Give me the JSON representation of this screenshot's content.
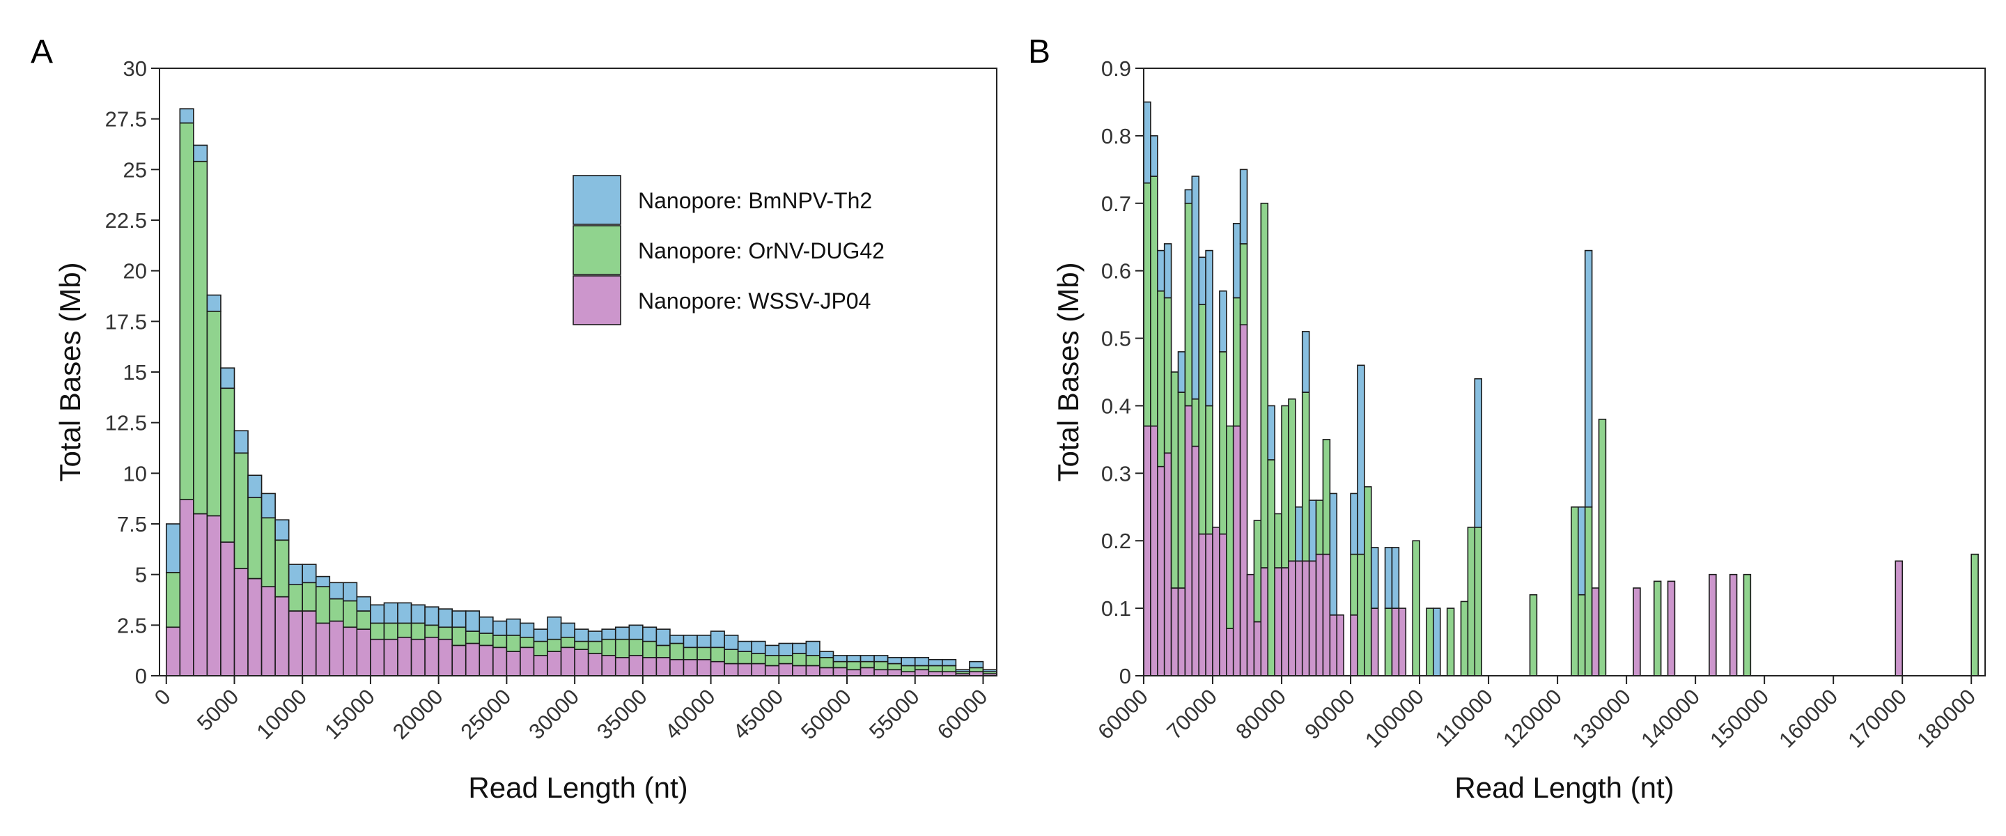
{
  "colors": {
    "BmNPV": "#88bfe0",
    "OrNV": "#90d38e",
    "WSSV": "#cc96cc"
  },
  "legend": {
    "items": [
      {
        "key": "BmNPV",
        "label": "Nanopore: BmNPV-Th2"
      },
      {
        "key": "OrNV",
        "label": "Nanopore: OrNV-DUG42"
      },
      {
        "key": "WSSV",
        "label": "Nanopore: WSSV-JP04"
      }
    ]
  },
  "chart_data": [
    {
      "panel": "A",
      "type": "bar",
      "stacked": true,
      "xlabel": "Read Length (nt)",
      "ylabel": "Total Bases (Mb)",
      "xlim": [
        -500,
        61000
      ],
      "ylim": [
        0,
        30
      ],
      "xticks": [
        0,
        5000,
        10000,
        15000,
        20000,
        25000,
        30000,
        35000,
        40000,
        45000,
        50000,
        55000,
        60000
      ],
      "yticks": [
        0,
        2.5,
        5,
        7.5,
        10,
        12.5,
        15,
        17.5,
        20,
        22.5,
        25,
        27.5,
        30
      ],
      "bin_width": 1000,
      "x": [
        0,
        1000,
        2000,
        3000,
        4000,
        5000,
        6000,
        7000,
        8000,
        9000,
        10000,
        11000,
        12000,
        13000,
        14000,
        15000,
        16000,
        17000,
        18000,
        19000,
        20000,
        21000,
        22000,
        23000,
        24000,
        25000,
        26000,
        27000,
        28000,
        29000,
        30000,
        31000,
        32000,
        33000,
        34000,
        35000,
        36000,
        37000,
        38000,
        39000,
        40000,
        41000,
        42000,
        43000,
        44000,
        45000,
        46000,
        47000,
        48000,
        49000,
        50000,
        51000,
        52000,
        53000,
        54000,
        55000,
        56000,
        57000,
        58000,
        59000,
        60000
      ],
      "legend_position": "top-right",
      "series": [
        {
          "key": "WSSV",
          "name": "Nanopore: WSSV-JP04",
          "values": [
            2.4,
            8.7,
            8.0,
            7.9,
            6.6,
            5.3,
            4.8,
            4.4,
            3.9,
            3.2,
            3.2,
            2.6,
            2.7,
            2.4,
            2.3,
            1.8,
            1.8,
            1.9,
            1.8,
            1.9,
            1.8,
            1.5,
            1.6,
            1.5,
            1.4,
            1.2,
            1.4,
            1.0,
            1.2,
            1.4,
            1.3,
            1.1,
            1.0,
            0.9,
            1.0,
            0.9,
            0.9,
            0.8,
            0.8,
            0.8,
            0.7,
            0.6,
            0.6,
            0.6,
            0.5,
            0.6,
            0.5,
            0.5,
            0.4,
            0.4,
            0.3,
            0.4,
            0.3,
            0.3,
            0.2,
            0.3,
            0.2,
            0.2,
            0.1,
            0.2,
            0.1
          ]
        },
        {
          "key": "OrNV",
          "name": "Nanopore: OrNV-DUG42",
          "values": [
            2.7,
            18.6,
            17.4,
            10.1,
            7.6,
            5.7,
            4.0,
            3.4,
            2.8,
            1.3,
            1.4,
            1.8,
            1.1,
            1.3,
            0.9,
            0.8,
            0.8,
            0.7,
            0.8,
            0.6,
            0.6,
            0.9,
            0.6,
            0.6,
            0.6,
            0.8,
            0.5,
            0.7,
            0.6,
            0.5,
            0.4,
            0.6,
            0.8,
            0.9,
            0.8,
            0.8,
            0.6,
            0.8,
            0.6,
            0.6,
            0.7,
            0.7,
            0.6,
            0.5,
            0.5,
            0.4,
            0.6,
            0.5,
            0.5,
            0.3,
            0.4,
            0.3,
            0.4,
            0.3,
            0.3,
            0.2,
            0.3,
            0.3,
            0.1,
            0.2,
            0.1
          ]
        },
        {
          "key": "BmNPV",
          "name": "Nanopore: BmNPV-Th2",
          "values": [
            2.4,
            0.7,
            0.8,
            0.8,
            1.0,
            1.1,
            1.1,
            1.2,
            1.0,
            1.0,
            0.9,
            0.5,
            0.8,
            0.9,
            0.7,
            0.9,
            1.0,
            1.0,
            0.9,
            0.9,
            0.9,
            0.8,
            1.0,
            0.8,
            0.7,
            0.8,
            0.7,
            0.6,
            1.1,
            0.7,
            0.6,
            0.5,
            0.5,
            0.6,
            0.7,
            0.7,
            0.8,
            0.4,
            0.6,
            0.6,
            0.8,
            0.7,
            0.5,
            0.6,
            0.5,
            0.6,
            0.5,
            0.7,
            0.3,
            0.3,
            0.3,
            0.3,
            0.3,
            0.3,
            0.4,
            0.4,
            0.3,
            0.3,
            0.1,
            0.3,
            0.1
          ]
        }
      ]
    },
    {
      "panel": "B",
      "type": "bar",
      "stacked": true,
      "xlabel": "Read Length (nt)",
      "ylabel": "Total Bases (Mb)",
      "xlim": [
        60000,
        182000
      ],
      "ylim": [
        0,
        0.9
      ],
      "xticks": [
        60000,
        70000,
        80000,
        90000,
        100000,
        110000,
        120000,
        130000,
        140000,
        150000,
        160000,
        170000,
        180000
      ],
      "yticks": [
        0,
        0.1,
        0.2,
        0.3,
        0.4,
        0.5,
        0.6,
        0.7,
        0.8,
        0.9
      ],
      "bin_width": 1000,
      "bars": [
        {
          "x": 60000,
          "WSSV": 0.37,
          "OrNV": 0.36,
          "BmNPV": 0.12
        },
        {
          "x": 61000,
          "WSSV": 0.37,
          "OrNV": 0.37,
          "BmNPV": 0.06
        },
        {
          "x": 62000,
          "WSSV": 0.31,
          "OrNV": 0.26,
          "BmNPV": 0.06
        },
        {
          "x": 63000,
          "WSSV": 0.33,
          "OrNV": 0.23,
          "BmNPV": 0.08
        },
        {
          "x": 64000,
          "WSSV": 0.13,
          "OrNV": 0.32,
          "BmNPV": 0.0
        },
        {
          "x": 65000,
          "WSSV": 0.13,
          "OrNV": 0.29,
          "BmNPV": 0.06
        },
        {
          "x": 66000,
          "WSSV": 0.4,
          "OrNV": 0.3,
          "BmNPV": 0.02
        },
        {
          "x": 67000,
          "WSSV": 0.34,
          "OrNV": 0.07,
          "BmNPV": 0.33
        },
        {
          "x": 68000,
          "WSSV": 0.21,
          "OrNV": 0.34,
          "BmNPV": 0.07
        },
        {
          "x": 69000,
          "WSSV": 0.21,
          "OrNV": 0.19,
          "BmNPV": 0.23
        },
        {
          "x": 70000,
          "WSSV": 0.22,
          "OrNV": 0.0,
          "BmNPV": 0.0
        },
        {
          "x": 71000,
          "WSSV": 0.21,
          "OrNV": 0.27,
          "BmNPV": 0.09
        },
        {
          "x": 72000,
          "WSSV": 0.07,
          "OrNV": 0.3,
          "BmNPV": 0.0
        },
        {
          "x": 73000,
          "WSSV": 0.37,
          "OrNV": 0.19,
          "BmNPV": 0.11
        },
        {
          "x": 74000,
          "WSSV": 0.52,
          "OrNV": 0.12,
          "BmNPV": 0.11
        },
        {
          "x": 75000,
          "WSSV": 0.15,
          "OrNV": 0.0,
          "BmNPV": 0.0
        },
        {
          "x": 76000,
          "WSSV": 0.08,
          "OrNV": 0.15,
          "BmNPV": 0.0
        },
        {
          "x": 77000,
          "WSSV": 0.16,
          "OrNV": 0.54,
          "BmNPV": 0.0
        },
        {
          "x": 78000,
          "WSSV": 0.0,
          "OrNV": 0.32,
          "BmNPV": 0.08
        },
        {
          "x": 79000,
          "WSSV": 0.16,
          "OrNV": 0.08,
          "BmNPV": 0.0
        },
        {
          "x": 80000,
          "WSSV": 0.16,
          "OrNV": 0.24,
          "BmNPV": 0.0
        },
        {
          "x": 81000,
          "WSSV": 0.17,
          "OrNV": 0.24,
          "BmNPV": 0.0
        },
        {
          "x": 82000,
          "WSSV": 0.17,
          "OrNV": 0.0,
          "BmNPV": 0.08
        },
        {
          "x": 83000,
          "WSSV": 0.17,
          "OrNV": 0.25,
          "BmNPV": 0.09
        },
        {
          "x": 84000,
          "WSSV": 0.17,
          "OrNV": 0.0,
          "BmNPV": 0.09
        },
        {
          "x": 85000,
          "WSSV": 0.18,
          "OrNV": 0.08,
          "BmNPV": 0.0
        },
        {
          "x": 86000,
          "WSSV": 0.18,
          "OrNV": 0.17,
          "BmNPV": 0.0
        },
        {
          "x": 87000,
          "WSSV": 0.09,
          "OrNV": 0.0,
          "BmNPV": 0.18
        },
        {
          "x": 88000,
          "WSSV": 0.09,
          "OrNV": 0.0,
          "BmNPV": 0.0
        },
        {
          "x": 90000,
          "WSSV": 0.09,
          "OrNV": 0.09,
          "BmNPV": 0.09
        },
        {
          "x": 91000,
          "WSSV": 0.0,
          "OrNV": 0.18,
          "BmNPV": 0.28
        },
        {
          "x": 92000,
          "WSSV": 0.0,
          "OrNV": 0.28,
          "BmNPV": 0.0
        },
        {
          "x": 93000,
          "WSSV": 0.1,
          "OrNV": 0.0,
          "BmNPV": 0.09
        },
        {
          "x": 95000,
          "WSSV": 0.0,
          "OrNV": 0.1,
          "BmNPV": 0.09
        },
        {
          "x": 96000,
          "WSSV": 0.1,
          "OrNV": 0.0,
          "BmNPV": 0.09
        },
        {
          "x": 97000,
          "WSSV": 0.1,
          "OrNV": 0.0,
          "BmNPV": 0.0
        },
        {
          "x": 99000,
          "WSSV": 0.0,
          "OrNV": 0.2,
          "BmNPV": 0.0
        },
        {
          "x": 101000,
          "WSSV": 0.0,
          "OrNV": 0.1,
          "BmNPV": 0.0
        },
        {
          "x": 102000,
          "WSSV": 0.0,
          "OrNV": 0.0,
          "BmNPV": 0.1
        },
        {
          "x": 104000,
          "WSSV": 0.0,
          "OrNV": 0.1,
          "BmNPV": 0.0
        },
        {
          "x": 106000,
          "WSSV": 0.0,
          "OrNV": 0.11,
          "BmNPV": 0.0
        },
        {
          "x": 107000,
          "WSSV": 0.0,
          "OrNV": 0.22,
          "BmNPV": 0.0
        },
        {
          "x": 108000,
          "WSSV": 0.0,
          "OrNV": 0.22,
          "BmNPV": 0.22
        },
        {
          "x": 116000,
          "WSSV": 0.0,
          "OrNV": 0.12,
          "BmNPV": 0.0
        },
        {
          "x": 122000,
          "WSSV": 0.0,
          "OrNV": 0.25,
          "BmNPV": 0.0
        },
        {
          "x": 123000,
          "WSSV": 0.0,
          "OrNV": 0.12,
          "BmNPV": 0.13
        },
        {
          "x": 124000,
          "WSSV": 0.0,
          "OrNV": 0.25,
          "BmNPV": 0.38
        },
        {
          "x": 125000,
          "WSSV": 0.13,
          "OrNV": 0.0,
          "BmNPV": 0.0
        },
        {
          "x": 126000,
          "WSSV": 0.0,
          "OrNV": 0.38,
          "BmNPV": 0.0
        },
        {
          "x": 131000,
          "WSSV": 0.13,
          "OrNV": 0.0,
          "BmNPV": 0.0
        },
        {
          "x": 134000,
          "WSSV": 0.0,
          "OrNV": 0.14,
          "BmNPV": 0.0
        },
        {
          "x": 136000,
          "WSSV": 0.14,
          "OrNV": 0.0,
          "BmNPV": 0.0
        },
        {
          "x": 142000,
          "WSSV": 0.15,
          "OrNV": 0.0,
          "BmNPV": 0.0
        },
        {
          "x": 145000,
          "WSSV": 0.15,
          "OrNV": 0.0,
          "BmNPV": 0.0
        },
        {
          "x": 147000,
          "WSSV": 0.0,
          "OrNV": 0.15,
          "BmNPV": 0.0
        },
        {
          "x": 169000,
          "WSSV": 0.17,
          "OrNV": 0.0,
          "BmNPV": 0.0
        },
        {
          "x": 180000,
          "WSSV": 0.0,
          "OrNV": 0.18,
          "BmNPV": 0.0
        }
      ]
    }
  ]
}
